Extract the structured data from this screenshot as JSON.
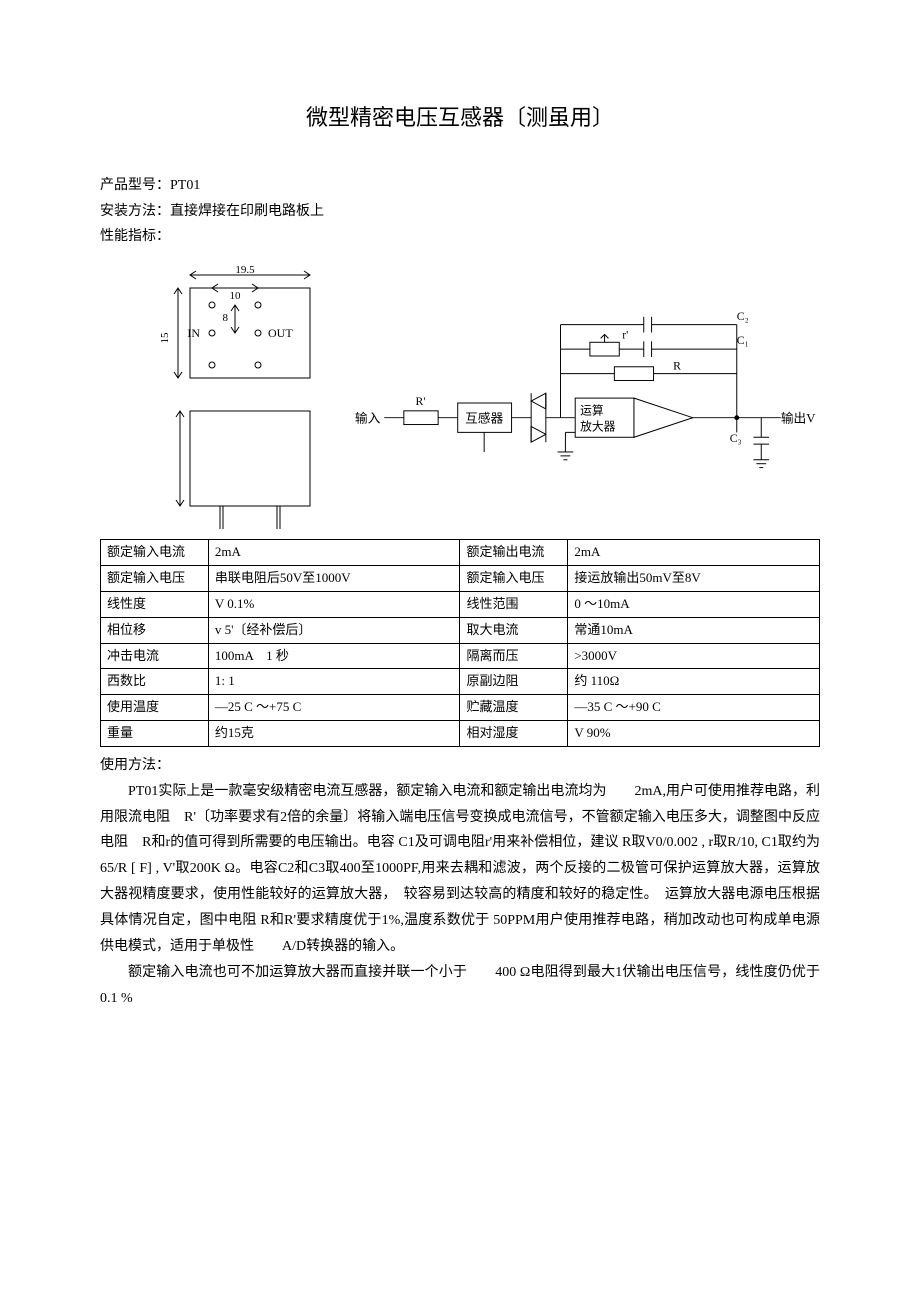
{
  "title": "微型精密电压互感器〔测虽用〕",
  "meta": {
    "model_label": "产品型号：",
    "model_value": "PT01",
    "install_label": "安装方法：",
    "install_value": "直接焊接在印刷电路板上",
    "spec_label": "性能指标："
  },
  "leftDiagram": {
    "width_outer": "19.5",
    "width_inner": "10",
    "height_mid": "8",
    "height_side": "15",
    "in_label": "IN",
    "out_label": "OUT",
    "box_stroke": "#000000",
    "box_fill": "#ffffff"
  },
  "circuit": {
    "input_label": "输入",
    "transformer_label": "互感器",
    "opamp_l1": "运算",
    "opamp_l2": "放大器",
    "output_label": "输出V",
    "R_prime": "R'",
    "r_prime": "r'",
    "R": "R",
    "C1": "C₁",
    "C2": "C₂",
    "C3": "C₃",
    "stroke": "#000000"
  },
  "table": {
    "rows": [
      [
        "额定输入电流",
        "2mA",
        "额定输出电流",
        "2mA"
      ],
      [
        "额定输入电压",
        "串联电阻后50V至1000V",
        "额定输入电压",
        "接运放输出50mV至8V"
      ],
      [
        "线性度",
        "V 0.1%",
        "线性范围",
        "0 ～10mA"
      ],
      [
        "相位移",
        "v 5'〔经补偿后〕",
        "取大电流",
        "常通10mA"
      ],
      [
        "冲击电流",
        "100mA　1 秒",
        "隔离而压",
        ">3000V"
      ],
      [
        "西数比",
        "1: 1",
        "原副边阻",
        "约 110Ω"
      ],
      [
        "使用温度",
        "—25 C ～+75 C",
        "贮藏温度",
        "—35 C ～+90 C"
      ],
      [
        "重量",
        "约15克",
        "相对湿度",
        "V 90%"
      ]
    ]
  },
  "usage": {
    "heading": "使用方法：",
    "p1": "PT01实际上是一款毫安级精密电流互感器，额定输入电流和额定输出电流均为　　2mA,用户可使用推荐电路，利用限流电阻　R'〔功率要求有2倍的余量〕将输入端电压信号变换成电流信号，不管额定输入电压多大，调整图中反应电阻　R和r的值可得到所需要的电压输出。电容 C1及可调电阻r'用来补偿相位，建议 R取V0/0.002 , r取R/10, C1取约为65/R [ F] , V'取200K Ω。电容C2和C3取400至1000PF,用来去耦和滤波，两个反接的二极管可保护运算放大器，运算放大器视精度要求，使用性能较好的运算放大器，　较容易到达较高的精度和较好的稳定性。　运算放大器电源电压根据具体情况自定，图中电阻 R和R'要求精度优于1%,温度系数优于 50PPM用户使用推荐电路，稍加改动也可构成单电源供电模式，适用于单极性　　A/D转换器的输入。",
    "p2": "额定输入电流也可不加运算放大器而直接并联一个小于　　400 Ω电阻得到最大1伏输出电压信号，线性度仍优于 0.1 %"
  },
  "style": {
    "title_fontsize": 22,
    "body_fontsize": 14,
    "table_fontsize": 13,
    "font_family": "SimSun",
    "background": "#ffffff",
    "text_color": "#000000",
    "border_color": "#000000"
  }
}
